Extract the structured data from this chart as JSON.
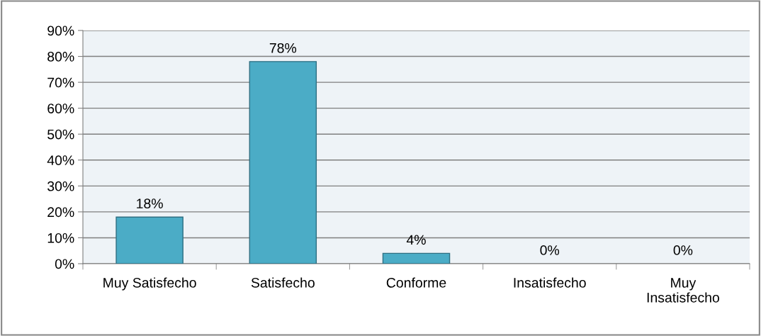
{
  "chart_data": {
    "type": "bar",
    "categories": [
      "Muy Satisfecho",
      "Satisfecho",
      "Conforme",
      "Insatisfecho",
      "Muy Insatisfecho"
    ],
    "values": [
      18,
      78,
      4,
      0,
      0
    ],
    "value_labels": [
      "18%",
      "78%",
      "4%",
      "0%",
      "0%"
    ],
    "color": "#4bacc6",
    "ylim": [
      0,
      90
    ],
    "yticks": [
      {
        "value": 0,
        "label": "0%"
      },
      {
        "value": 10,
        "label": "10%"
      },
      {
        "value": 20,
        "label": "20%"
      },
      {
        "value": 30,
        "label": "30%"
      },
      {
        "value": 40,
        "label": "40%"
      },
      {
        "value": 50,
        "label": "50%"
      },
      {
        "value": 60,
        "label": "60%"
      },
      {
        "value": 70,
        "label": "70%"
      },
      {
        "value": 80,
        "label": "80%"
      },
      {
        "value": 90,
        "label": "90%"
      }
    ],
    "grid": "y",
    "legend": false
  }
}
